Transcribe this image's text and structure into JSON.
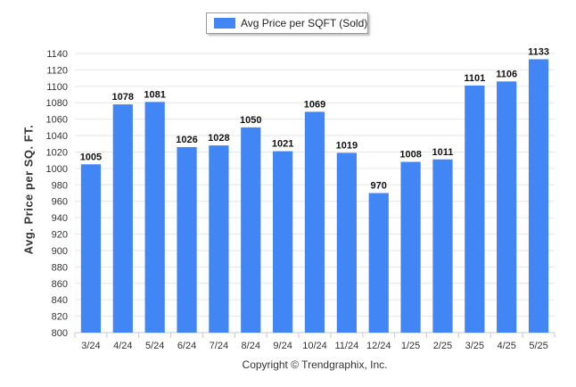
{
  "legend": {
    "label": "Avg Price per SQFT (Sold)"
  },
  "copyright": "Copyright © Trendgraphix, Inc.",
  "colors": {
    "bar": "#4285f4",
    "grid": "#e6e6e6",
    "axis": "#c8c8c8",
    "text": "#333333"
  },
  "chart_data": {
    "type": "bar",
    "title": "",
    "xlabel": "",
    "ylabel": "Avg. Price per SQ. FT.",
    "categories": [
      "3/24",
      "4/24",
      "5/24",
      "6/24",
      "7/24",
      "8/24",
      "9/24",
      "10/24",
      "11/24",
      "12/24",
      "1/25",
      "2/25",
      "3/25",
      "4/25",
      "5/25"
    ],
    "series": [
      {
        "name": "Avg Price per SQFT (Sold)",
        "values": [
          1005,
          1078,
          1081,
          1026,
          1028,
          1050,
          1021,
          1069,
          1019,
          970,
          1008,
          1011,
          1101,
          1106,
          1133
        ]
      }
    ],
    "ylim": [
      800,
      1140
    ],
    "yticks": [
      800,
      820,
      840,
      860,
      880,
      900,
      920,
      940,
      960,
      980,
      1000,
      1020,
      1040,
      1060,
      1080,
      1100,
      1120,
      1140
    ],
    "grid": true,
    "data_labels": true,
    "legend_position": "top-center"
  }
}
